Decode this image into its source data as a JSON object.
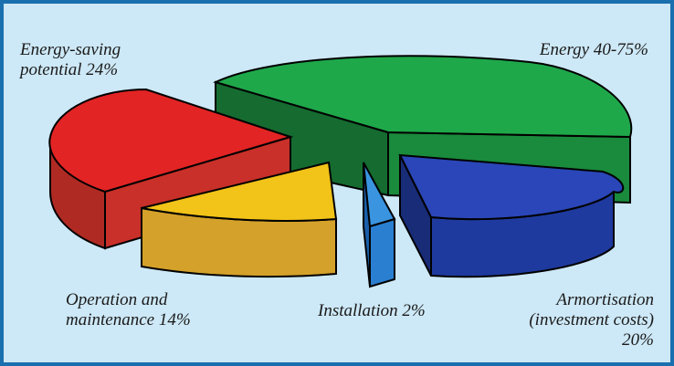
{
  "chart_data": {
    "type": "pie",
    "title": "",
    "slices": [
      {
        "label": "Energy 40-75%",
        "value": 40,
        "color": "#1fa84a"
      },
      {
        "label": "Armortisation\n(investment costs)\n20%",
        "value": 20,
        "color": "#1e3a9e"
      },
      {
        "label": "Installation 2%",
        "value": 2,
        "color": "#2a7fd0"
      },
      {
        "label": "Operation and\nmaintenance 14%",
        "value": 14,
        "color": "#f2c318"
      },
      {
        "label": "Energy-saving\npotential 24%",
        "value": 24,
        "color": "#e32424"
      }
    ]
  }
}
